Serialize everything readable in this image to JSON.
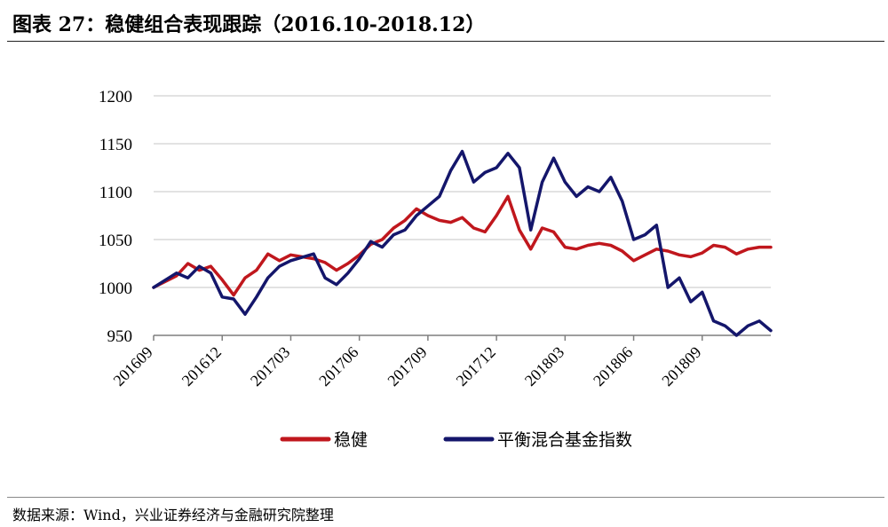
{
  "title": "图表 27：稳健组合表现跟踪（2016.10-2018.12）",
  "source": "数据来源：Wind，兴业证券经济与金融研究院整理",
  "colors": {
    "series_red": "#c0171d",
    "series_blue": "#14166b",
    "grid": "#d9d9d9",
    "axis": "#7f7f7f"
  },
  "chart_data": {
    "type": "line",
    "title": "图表 27：稳健组合表现跟踪（2016.10-2018.12）",
    "xlabel": "",
    "ylabel": "",
    "ylim": [
      950,
      1200
    ],
    "yticks": [
      950,
      1000,
      1050,
      1100,
      1150,
      1200
    ],
    "grid": true,
    "legend_position": "bottom",
    "x_tick_labels": [
      "201609",
      "201612",
      "201703",
      "201706",
      "201709",
      "201712",
      "201803",
      "201806",
      "201809"
    ],
    "x_domain": [
      "2016-09",
      "2018-12"
    ],
    "series": [
      {
        "name": "稳健",
        "color": "#c0171d",
        "points": [
          [
            "2016-09",
            1000
          ],
          [
            "2016-10",
            1012
          ],
          [
            "2016-10",
            1025
          ],
          [
            "2016-11",
            1018
          ],
          [
            "2016-11",
            1022
          ],
          [
            "2016-12",
            1008
          ],
          [
            "2016-12",
            992
          ],
          [
            "2017-01",
            1010
          ],
          [
            "2017-01",
            1018
          ],
          [
            "2017-02",
            1035
          ],
          [
            "2017-02",
            1028
          ],
          [
            "2017-03",
            1034
          ],
          [
            "2017-04",
            1030
          ],
          [
            "2017-04",
            1026
          ],
          [
            "2017-05",
            1018
          ],
          [
            "2017-05",
            1025
          ],
          [
            "2017-06",
            1034
          ],
          [
            "2017-06",
            1045
          ],
          [
            "2017-07",
            1050
          ],
          [
            "2017-07",
            1062
          ],
          [
            "2017-08",
            1070
          ],
          [
            "2017-08",
            1082
          ],
          [
            "2017-09",
            1075
          ],
          [
            "2017-09",
            1070
          ],
          [
            "2017-10",
            1068
          ],
          [
            "2017-10",
            1073
          ],
          [
            "2017-11",
            1062
          ],
          [
            "2017-11",
            1058
          ],
          [
            "2017-12",
            1075
          ],
          [
            "2017-12",
            1095
          ],
          [
            "2018-01",
            1060
          ],
          [
            "2018-01",
            1040
          ],
          [
            "2018-02",
            1062
          ],
          [
            "2018-02",
            1058
          ],
          [
            "2018-03",
            1042
          ],
          [
            "2018-03",
            1040
          ],
          [
            "2018-04",
            1044
          ],
          [
            "2018-04",
            1046
          ],
          [
            "2018-05",
            1044
          ],
          [
            "2018-05",
            1038
          ],
          [
            "2018-06",
            1028
          ],
          [
            "2018-06",
            1034
          ],
          [
            "2018-07",
            1040
          ],
          [
            "2018-07",
            1038
          ],
          [
            "2018-08",
            1034
          ],
          [
            "2018-08",
            1032
          ],
          [
            "2018-09",
            1036
          ],
          [
            "2018-09",
            1044
          ],
          [
            "2018-10",
            1042
          ],
          [
            "2018-10",
            1035
          ],
          [
            "2018-11",
            1040
          ],
          [
            "2018-11",
            1042
          ],
          [
            "2018-12",
            1042
          ]
        ]
      },
      {
        "name": "平衡混合基金指数",
        "color": "#14166b",
        "points": [
          [
            "2016-09",
            1000
          ],
          [
            "2016-10",
            1015
          ],
          [
            "2016-10",
            1010
          ],
          [
            "2016-11",
            1022
          ],
          [
            "2016-11",
            1015
          ],
          [
            "2016-12",
            990
          ],
          [
            "2016-12",
            988
          ],
          [
            "2017-01",
            972
          ],
          [
            "2017-01",
            990
          ],
          [
            "2017-02",
            1010
          ],
          [
            "2017-02",
            1022
          ],
          [
            "2017-03",
            1028
          ],
          [
            "2017-04",
            1035
          ],
          [
            "2017-04",
            1010
          ],
          [
            "2017-05",
            1003
          ],
          [
            "2017-05",
            1015
          ],
          [
            "2017-06",
            1030
          ],
          [
            "2017-06",
            1048
          ],
          [
            "2017-07",
            1042
          ],
          [
            "2017-07",
            1055
          ],
          [
            "2017-08",
            1060
          ],
          [
            "2017-08",
            1075
          ],
          [
            "2017-09",
            1085
          ],
          [
            "2017-09",
            1095
          ],
          [
            "2017-10",
            1122
          ],
          [
            "2017-10",
            1142
          ],
          [
            "2017-11",
            1110
          ],
          [
            "2017-11",
            1120
          ],
          [
            "2017-12",
            1125
          ],
          [
            "2017-12",
            1140
          ],
          [
            "2018-01",
            1125
          ],
          [
            "2018-01",
            1060
          ],
          [
            "2018-02",
            1110
          ],
          [
            "2018-02",
            1135
          ],
          [
            "2018-03",
            1110
          ],
          [
            "2018-03",
            1095
          ],
          [
            "2018-04",
            1105
          ],
          [
            "2018-04",
            1100
          ],
          [
            "2018-05",
            1115
          ],
          [
            "2018-05",
            1090
          ],
          [
            "2018-06",
            1050
          ],
          [
            "2018-06",
            1055
          ],
          [
            "2018-07",
            1065
          ],
          [
            "2018-07",
            1000
          ],
          [
            "2018-08",
            1010
          ],
          [
            "2018-08",
            985
          ],
          [
            "2018-09",
            995
          ],
          [
            "2018-09",
            965
          ],
          [
            "2018-10",
            960
          ],
          [
            "2018-10",
            950
          ],
          [
            "2018-11",
            960
          ],
          [
            "2018-11",
            965
          ],
          [
            "2018-12",
            955
          ]
        ]
      }
    ]
  },
  "legend": [
    {
      "label": "稳健",
      "color": "#c0171d"
    },
    {
      "label": "平衡混合基金指数",
      "color": "#14166b"
    }
  ]
}
